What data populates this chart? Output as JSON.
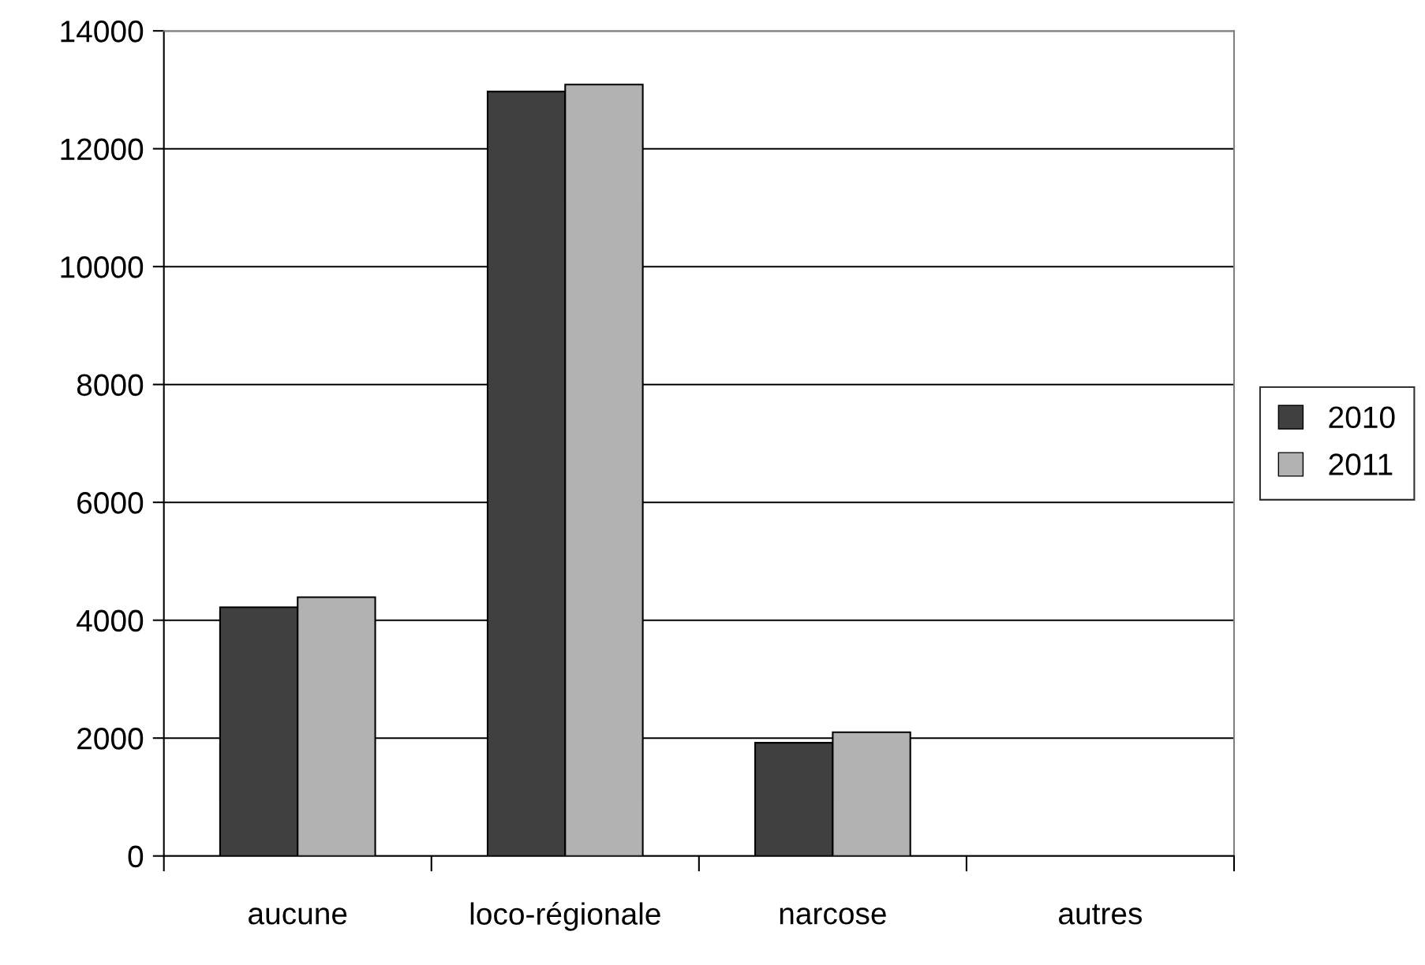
{
  "chart_data": {
    "type": "bar",
    "categories": [
      "aucune",
      "loco-régionale",
      "narcose",
      "autres"
    ],
    "series": [
      {
        "name": "2010",
        "color": "#404040",
        "values": [
          4220,
          12970,
          1920,
          null
        ]
      },
      {
        "name": "2011",
        "color": "#b2b2b2",
        "values": [
          4390,
          13090,
          2100,
          null
        ]
      }
    ],
    "ylim": [
      0,
      14000
    ],
    "yticks": [
      0,
      2000,
      4000,
      6000,
      8000,
      10000,
      12000,
      14000
    ],
    "grid": "y",
    "legend": "right"
  }
}
